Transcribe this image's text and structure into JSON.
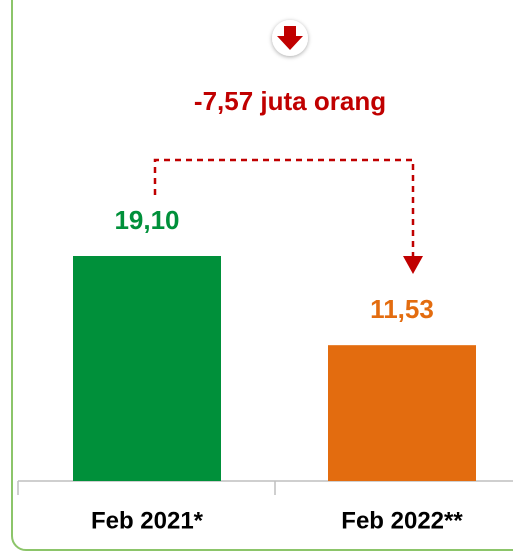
{
  "chart_data": {
    "type": "bar",
    "categories": [
      "Feb 2021*",
      "Feb 2022**"
    ],
    "values": [
      19.1,
      11.53
    ],
    "value_labels": [
      "19,10",
      "11,53"
    ],
    "colors": [
      "#00903a",
      "#e36c0f"
    ],
    "annotation": "-7,57 juta orang"
  }
}
